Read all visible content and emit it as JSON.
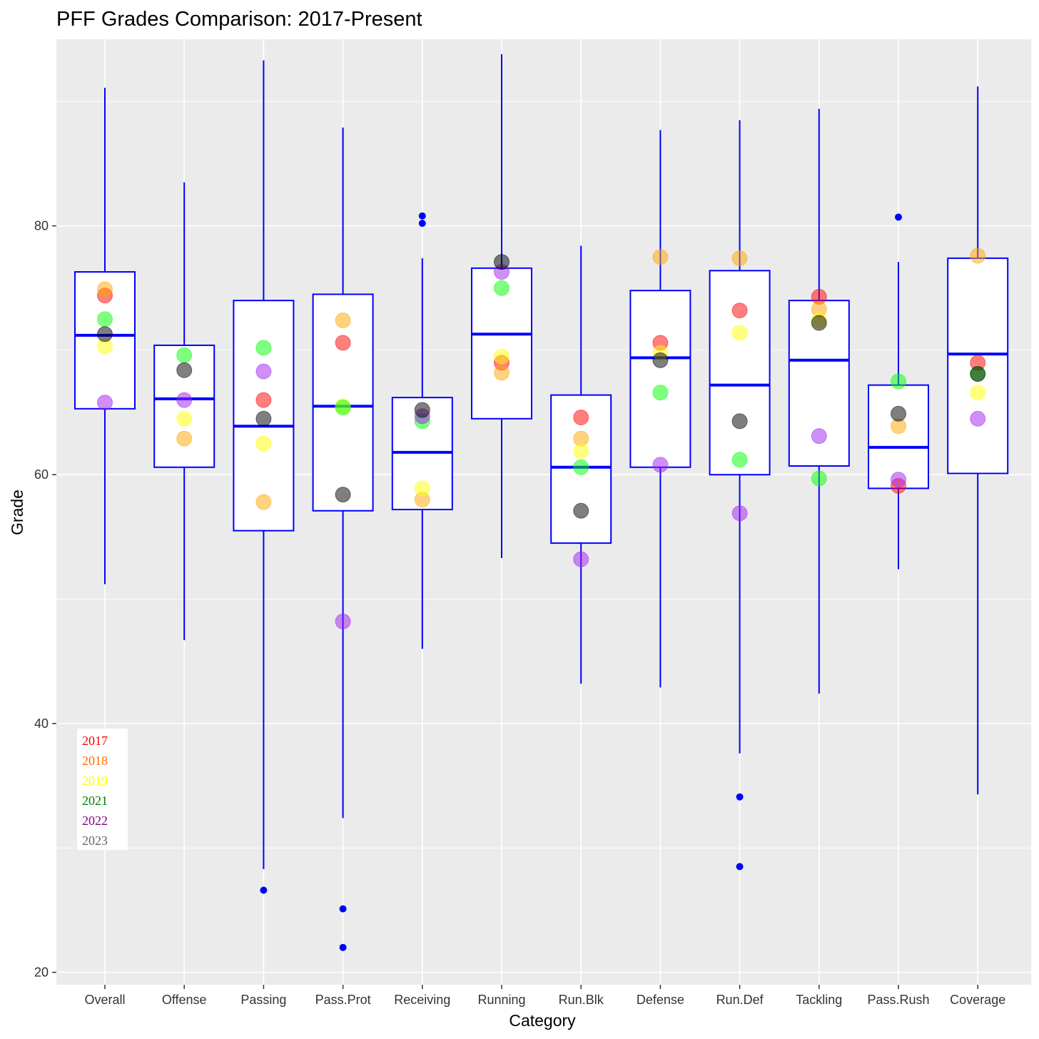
{
  "chart_data": {
    "type": "boxplot",
    "title": "PFF Grades Comparison: 2017-Present",
    "xlabel": "Category",
    "ylabel": "Grade",
    "ylim": [
      19,
      95
    ],
    "yticks": [
      20,
      40,
      60,
      80
    ],
    "grid": true,
    "categories": [
      "Overall",
      "Offense",
      "Passing",
      "Pass.Prot",
      "Receiving",
      "Running",
      "Run.Blk",
      "Defense",
      "Run.Def",
      "Tackling",
      "Pass.Rush",
      "Coverage"
    ],
    "boxes": [
      {
        "min": 51.2,
        "q1": 65.3,
        "median": 71.2,
        "q3": 76.3,
        "max": 91.1,
        "outliers": []
      },
      {
        "min": 46.7,
        "q1": 60.6,
        "median": 66.1,
        "q3": 70.4,
        "max": 83.5,
        "outliers": []
      },
      {
        "min": 28.3,
        "q1": 55.5,
        "median": 63.9,
        "q3": 74.0,
        "max": 93.3,
        "outliers": [
          26.6
        ]
      },
      {
        "min": 32.4,
        "q1": 57.1,
        "median": 65.5,
        "q3": 74.5,
        "max": 87.9,
        "outliers": [
          25.1,
          22.0
        ]
      },
      {
        "min": 46.0,
        "q1": 57.2,
        "median": 61.8,
        "q3": 66.2,
        "max": 77.4,
        "outliers": [
          80.8,
          80.2
        ]
      },
      {
        "min": 53.3,
        "q1": 64.5,
        "median": 71.3,
        "q3": 76.6,
        "max": 93.8,
        "outliers": []
      },
      {
        "min": 43.2,
        "q1": 54.5,
        "median": 60.6,
        "q3": 66.4,
        "max": 78.4,
        "outliers": []
      },
      {
        "min": 42.9,
        "q1": 60.6,
        "median": 69.4,
        "q3": 74.8,
        "max": 87.7,
        "outliers": []
      },
      {
        "min": 37.6,
        "q1": 60.0,
        "median": 67.2,
        "q3": 76.4,
        "max": 88.5,
        "outliers": [
          34.1,
          28.5
        ]
      },
      {
        "min": 42.4,
        "q1": 60.7,
        "median": 69.2,
        "q3": 74.0,
        "max": 89.4,
        "outliers": []
      },
      {
        "min": 52.4,
        "q1": 58.9,
        "median": 62.2,
        "q3": 67.2,
        "max": 77.1,
        "outliers": [
          80.7
        ]
      },
      {
        "min": 34.3,
        "q1": 60.1,
        "median": 69.7,
        "q3": 77.4,
        "max": 91.2,
        "outliers": []
      }
    ],
    "series": [
      {
        "name": "2017",
        "color": "#ff0000",
        "values": [
          74.4,
          null,
          66.0,
          70.6,
          null,
          69.0,
          64.6,
          70.6,
          73.2,
          74.3,
          59.1,
          69.0
        ]
      },
      {
        "name": "2018",
        "color": "#ffa500",
        "values": [
          74.9,
          62.9,
          57.8,
          72.4,
          58.0,
          68.2,
          62.9,
          77.5,
          77.4,
          73.3,
          63.9,
          77.6
        ]
      },
      {
        "name": "2019",
        "color": "#ffff00",
        "values": [
          70.3,
          64.5,
          62.5,
          65.5,
          58.9,
          69.5,
          61.9,
          69.8,
          71.4,
          72.4,
          null,
          66.6
        ]
      },
      {
        "name": "2021",
        "color": "#00ff00",
        "values": [
          72.5,
          69.6,
          70.2,
          65.4,
          64.3,
          75.0,
          60.6,
          66.6,
          61.2,
          59.7,
          67.5,
          68.1
        ]
      },
      {
        "name": "2022",
        "color": "#a020f0",
        "values": [
          65.8,
          66.0,
          68.3,
          48.2,
          64.7,
          76.3,
          53.2,
          60.8,
          56.9,
          63.1,
          59.6,
          64.5
        ]
      },
      {
        "name": "2023",
        "color": "#000000",
        "values": [
          71.3,
          68.4,
          64.5,
          58.4,
          65.2,
          77.1,
          57.1,
          69.2,
          64.3,
          72.2,
          64.9,
          68.1
        ]
      }
    ],
    "legend": {
      "placement": "bottom-left",
      "entries": [
        {
          "label": "2017",
          "color": "#ff0000"
        },
        {
          "label": "2018",
          "color": "#ff6a00"
        },
        {
          "label": "2019",
          "color": "#ffff00"
        },
        {
          "label": "2021",
          "color": "#007f00"
        },
        {
          "label": "2022",
          "color": "#7f007f"
        },
        {
          "label": "2023",
          "color": "#666666"
        }
      ]
    }
  }
}
